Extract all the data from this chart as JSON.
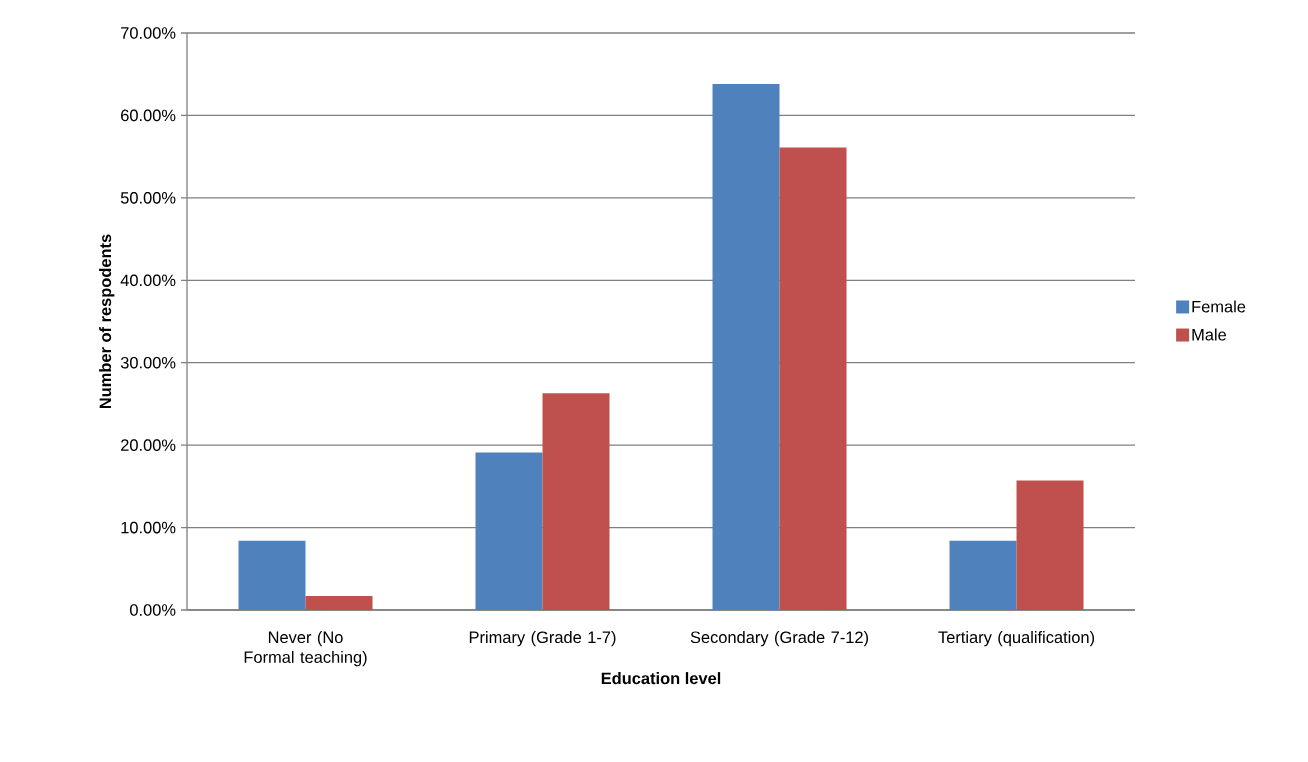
{
  "chart_data": {
    "type": "bar",
    "categories": [
      "Never (No Formal teaching)",
      "Primary (Grade 1-7)",
      "Secondary (Grade 7-12)",
      "Tertiary (qualification)"
    ],
    "series": [
      {
        "name": "Female",
        "color": "#4f81bd",
        "values": [
          8.4,
          19.1,
          63.8,
          8.4
        ]
      },
      {
        "name": "Male",
        "color": "#c0504d",
        "values": [
          1.7,
          26.3,
          56.1,
          15.7
        ]
      }
    ],
    "xlabel": "Education level",
    "ylabel": "Number of respodents",
    "ylim": [
      0,
      70
    ],
    "yticks": [
      {
        "value": 0,
        "label": "0.00%"
      },
      {
        "value": 10,
        "label": "10.00%"
      },
      {
        "value": 20,
        "label": "20.00%"
      },
      {
        "value": 30,
        "label": "30.00%"
      },
      {
        "value": 40,
        "label": "40.00%"
      },
      {
        "value": 50,
        "label": "50.00%"
      },
      {
        "value": 60,
        "label": "60.00%"
      },
      {
        "value": 70,
        "label": "70.00%"
      }
    ],
    "grid": "y",
    "legend": "right"
  }
}
